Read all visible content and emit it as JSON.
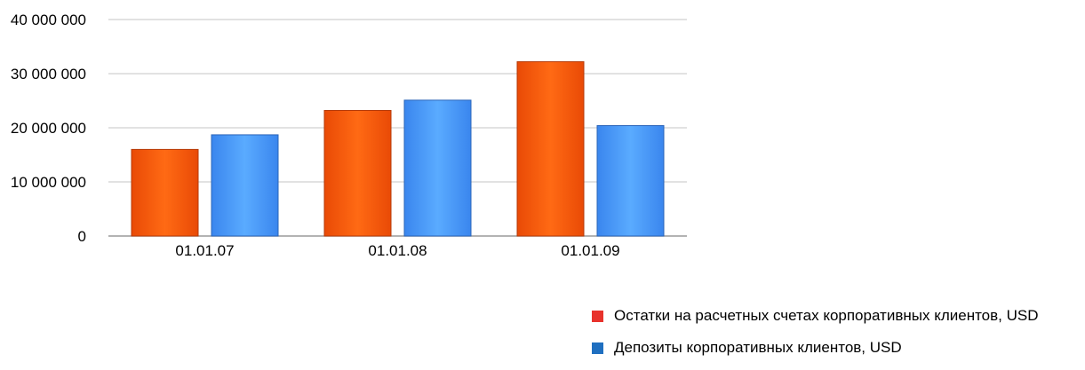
{
  "chart_data": {
    "type": "bar",
    "categories": [
      "01.01.07",
      "01.01.08",
      "01.01.09"
    ],
    "series": [
      {
        "name": "Остатки на расчетных счетах корпоративных клиентов, USD",
        "values": [
          16000000,
          23200000,
          32200000
        ],
        "color": "#fe5a0c"
      },
      {
        "name": "Депозиты корпоративных клиентов, USD",
        "values": [
          18700000,
          25100000,
          20400000
        ],
        "color": "#3c8ef0"
      }
    ],
    "ylim": [
      0,
      40000000
    ],
    "yticks": [
      "0",
      "10 000 000",
      "20 000 000",
      "30 000 000",
      "40 000 000"
    ],
    "ytick_values": [
      0,
      10000000,
      20000000,
      30000000,
      40000000
    ],
    "grid": true,
    "legend_position": "bottom-right",
    "legend_colors": [
      "#e8322c",
      "#1f6fc0"
    ]
  }
}
